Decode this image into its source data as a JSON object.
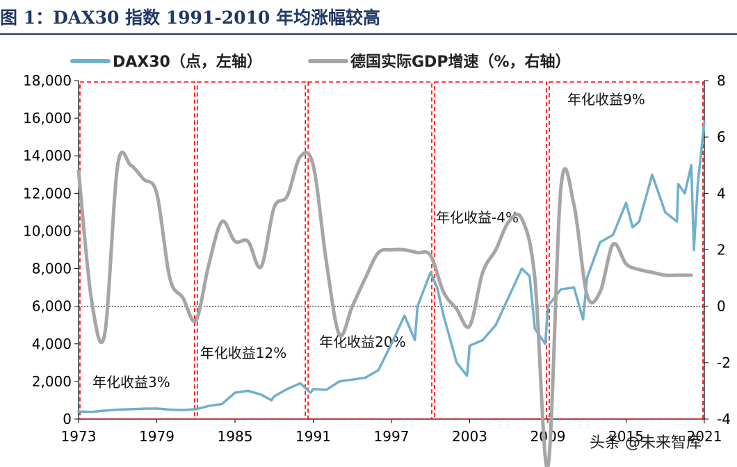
{
  "figure_title": "图 1：DAX30 指数 1991-2010 年均涨幅较高",
  "watermark": "头条 @未来智库",
  "chart_data": {
    "type": "line",
    "title": "DAX30 指数 1991-2010 年均涨幅较高",
    "x_ticks": [
      "1973",
      "1979",
      "1985",
      "1991",
      "1997",
      "2003",
      "2009",
      "2015",
      "2021"
    ],
    "xlim": [
      1973,
      2021
    ],
    "left_axis": {
      "ylim": [
        0,
        18000
      ],
      "ticks": [
        "0",
        "2,000",
        "4,000",
        "6,000",
        "8,000",
        "10,000",
        "12,000",
        "14,000",
        "16,000",
        "18,000"
      ]
    },
    "right_axis": {
      "ylim": [
        -4,
        8
      ],
      "ticks": [
        "-4",
        "-2",
        "0",
        "2",
        "4",
        "6",
        "8"
      ]
    },
    "legend": [
      {
        "name": "DAX30（点，左轴）",
        "color": "#6fb0cc"
      },
      {
        "name": "德国实际GDP增速（%，右轴）",
        "color": "#a6a6a6"
      }
    ],
    "zero_line_right_axis": 0,
    "series": [
      {
        "name": "DAX30（点，左轴）",
        "axis": "left",
        "color": "#6fb0cc",
        "x": [
          1973,
          1974,
          1975,
          1976,
          1977,
          1978,
          1979,
          1980,
          1981,
          1982,
          1983,
          1984,
          1985,
          1986,
          1987,
          1987.8,
          1988,
          1989,
          1990,
          1990.8,
          1991,
          1992,
          1993,
          1994,
          1995,
          1996,
          1997,
          1998,
          1998.8,
          1999,
          2000,
          2000.5,
          2001,
          2002,
          2002.8,
          2003,
          2004,
          2005,
          2006,
          2007,
          2007.6,
          2008,
          2008.8,
          2009,
          2010,
          2011,
          2011.7,
          2012,
          2013,
          2014,
          2015,
          2015.5,
          2016,
          2017,
          2018,
          2018.9,
          2019,
          2019.5,
          2020,
          2020.2,
          2020.5,
          2021
        ],
        "values": [
          400,
          380,
          450,
          500,
          520,
          550,
          560,
          500,
          480,
          520,
          700,
          800,
          1400,
          1500,
          1300,
          1000,
          1200,
          1600,
          1900,
          1400,
          1600,
          1550,
          2000,
          2100,
          2200,
          2600,
          4000,
          5500,
          4200,
          6000,
          7800,
          7000,
          5500,
          3000,
          2300,
          3900,
          4200,
          5000,
          6500,
          8000,
          7600,
          4800,
          4000,
          6000,
          6900,
          7000,
          5300,
          7500,
          9400,
          9800,
          11500,
          10200,
          10500,
          13000,
          11000,
          10500,
          12500,
          12000,
          13500,
          9000,
          12500,
          15800
        ]
      },
      {
        "name": "德国实际GDP增速（%，右轴）",
        "axis": "right",
        "color": "#a6a6a6",
        "x": [
          1973,
          1974,
          1975,
          1976,
          1977,
          1978,
          1979,
          1980,
          1981,
          1982,
          1983,
          1984,
          1985,
          1986,
          1987,
          1988,
          1989,
          1990,
          1991,
          1992,
          1993,
          1994,
          1995,
          1996,
          1997,
          1998,
          1999,
          2000,
          2001,
          2002,
          2003,
          2004,
          2005,
          2006,
          2007,
          2008,
          2009,
          2010,
          2011,
          2012,
          2013,
          2014,
          2015,
          2016,
          2017,
          2018,
          2019,
          2020
        ],
        "values": [
          4.8,
          0.2,
          -1.0,
          5.0,
          5.0,
          4.5,
          4.0,
          1.0,
          0.3,
          -0.5,
          1.5,
          3.0,
          2.3,
          2.3,
          1.4,
          3.5,
          3.9,
          5.3,
          5.0,
          1.6,
          -1.0,
          0.0,
          1.0,
          1.9,
          2.0,
          2.0,
          1.9,
          1.8,
          0.5,
          -0.1,
          -0.7,
          1.2,
          2.0,
          3.0,
          3.1,
          1.0,
          -5.7,
          4.2,
          3.6,
          0.4,
          0.5,
          2.2,
          1.5,
          1.3,
          1.2,
          1.1,
          1.1,
          1.1
        ]
      }
    ],
    "regions": [
      {
        "label": "年化收益3%",
        "start": 1973,
        "end": 1982
      },
      {
        "label": "年化收益12%",
        "start": 1982,
        "end": 1990.5
      },
      {
        "label": "年化收益20%",
        "start": 1990.5,
        "end": 2000.2
      },
      {
        "label": "年化收益-4%",
        "start": 2000.2,
        "end": 2009
      },
      {
        "label": "年化收益9%",
        "start": 2009,
        "end": 2021
      }
    ]
  }
}
